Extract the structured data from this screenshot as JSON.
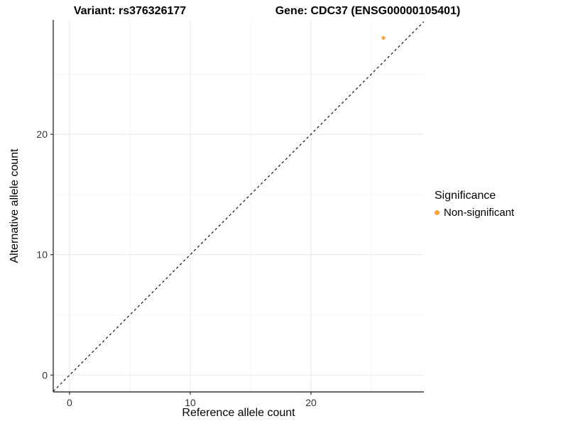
{
  "chart_data": {
    "type": "scatter",
    "title_left": "Variant: rs376326177",
    "title_right": "Gene: CDC37 (ENSG00000105401)",
    "xlabel": "Reference allele count",
    "ylabel": "Alternative allele count",
    "xlim": [
      -1.35,
      29.35
    ],
    "ylim": [
      -1.4,
      29.5
    ],
    "x_ticks": [
      0,
      10,
      20
    ],
    "y_ticks": [
      0,
      10,
      20
    ],
    "x_minor_ticks": [
      5,
      15,
      25
    ],
    "y_minor_ticks": [
      5,
      15,
      25
    ],
    "grid": "major and minor gridlines on white background",
    "identity_line": {
      "slope": 1,
      "intercept": 0,
      "style": "dashed",
      "color": "#000000"
    },
    "series": [
      {
        "name": "Non-significant",
        "color": "#FAA43A",
        "points": [
          {
            "x": 26,
            "y": 28
          }
        ]
      }
    ],
    "legend": {
      "title": "Significance",
      "position": "right",
      "items": [
        {
          "label": "Non-significant",
          "color": "#FAA43A"
        }
      ]
    },
    "colors": {
      "grid_major": "#E8E8E8",
      "grid_minor": "#F2F2F2",
      "axis_line": "#333333",
      "tick_text": "#333333",
      "point": "#FAA43A"
    }
  }
}
